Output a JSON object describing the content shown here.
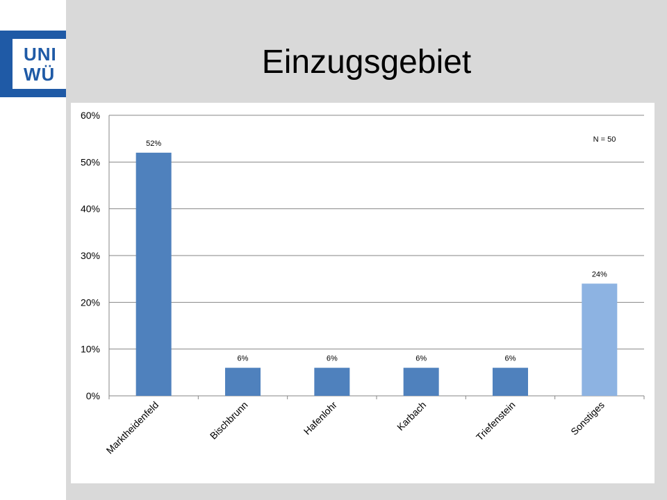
{
  "slide": {
    "title": "Einzugsgebiet",
    "logo_text": "UNI\nWÜ"
  },
  "colors": {
    "slide_background": "#d9d9d9",
    "bar_primary": "#4f81bd",
    "bar_highlight": "#8db3e2",
    "logo_blue": "#1f5aa6"
  },
  "chart_data": {
    "type": "bar",
    "categories": [
      "Marktheidenfeld",
      "Bischbrunn",
      "Hafenlohr",
      "Karbach",
      "Triefenstein",
      "Sonstiges"
    ],
    "values": [
      52,
      6,
      6,
      6,
      6,
      24
    ],
    "data_labels": [
      "52%",
      "6%",
      "6%",
      "6%",
      "6%",
      "24%"
    ],
    "bar_colors": [
      "#4f81bd",
      "#4f81bd",
      "#4f81bd",
      "#4f81bd",
      "#4f81bd",
      "#8db3e2"
    ],
    "y_ticks": [
      "0%",
      "10%",
      "20%",
      "30%",
      "40%",
      "50%",
      "60%"
    ],
    "ylim": [
      0,
      60
    ],
    "grid": true,
    "legend": false,
    "annotation": "N = 50",
    "annotation_position": "top-right",
    "title": "",
    "xlabel": "",
    "ylabel": ""
  }
}
